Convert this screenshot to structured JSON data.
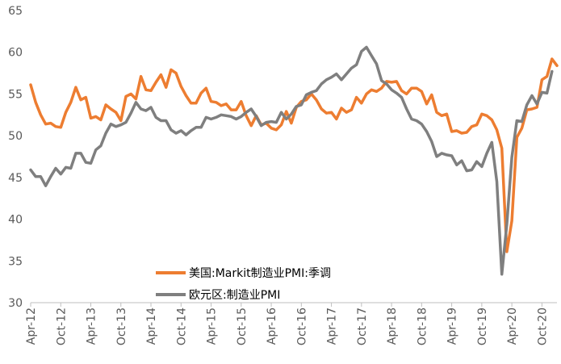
{
  "chart_data": {
    "type": "line",
    "title": "",
    "xlabel": "",
    "ylabel": "",
    "ylim": [
      30,
      65
    ],
    "yticks": [
      "30",
      "35",
      "40",
      "45",
      "50",
      "55",
      "60",
      "65"
    ],
    "x_tick_labels": [
      "Apr-12",
      "Oct-12",
      "Apr-13",
      "Oct-13",
      "Apr-14",
      "Oct-14",
      "Apr-15",
      "Oct-15",
      "Apr-16",
      "Oct-16",
      "Apr-17",
      "Oct-17",
      "Apr-18",
      "Oct-18",
      "Apr-19",
      "Oct-19",
      "Apr-20",
      "Oct-20"
    ],
    "x_start": "2012-04",
    "x_end": "2021-01",
    "grid": false,
    "legend_position": "bottom-center",
    "series": [
      {
        "name": "美国:Markit制造业PMI:季调",
        "color": "#ED7D31",
        "values": [
          56.1,
          54.0,
          52.5,
          51.4,
          51.5,
          51.1,
          51.0,
          52.8,
          54.0,
          55.8,
          54.3,
          54.6,
          52.1,
          52.3,
          51.9,
          53.7,
          53.2,
          52.8,
          51.8,
          54.7,
          55.0,
          54.4,
          57.1,
          55.5,
          55.4,
          56.4,
          57.3,
          55.8,
          57.9,
          57.5,
          55.9,
          54.8,
          53.9,
          53.9,
          55.1,
          55.7,
          54.1,
          54.0,
          53.6,
          53.8,
          53.1,
          53.1,
          54.1,
          52.4,
          51.2,
          52.4,
          51.3,
          51.5,
          50.9,
          50.7,
          51.3,
          52.9,
          51.5,
          53.4,
          54.1,
          54.3,
          55.0,
          54.3,
          53.2,
          52.7,
          52.8,
          52.0,
          53.3,
          52.8,
          53.1,
          54.6,
          53.9,
          55.0,
          55.5,
          55.3,
          55.7,
          56.5,
          56.4,
          56.5,
          55.4,
          55.0,
          55.7,
          55.7,
          55.3,
          53.8,
          54.9,
          52.8,
          52.4,
          52.6,
          50.5,
          50.6,
          50.3,
          50.4,
          51.1,
          51.3,
          52.6,
          52.4,
          51.9,
          50.7,
          48.5,
          36.1,
          39.8,
          49.8,
          50.9,
          53.1,
          53.2,
          53.4,
          56.7,
          57.1,
          59.2,
          58.4
        ],
        "last_month": "2021-01"
      },
      {
        "name": "欧元区:制造业PMI",
        "color": "#7F7F7F",
        "values": [
          45.9,
          45.1,
          45.1,
          44.0,
          45.1,
          46.1,
          45.4,
          46.2,
          46.1,
          47.9,
          47.9,
          46.8,
          46.7,
          48.3,
          48.8,
          50.3,
          51.4,
          51.1,
          51.3,
          51.6,
          52.7,
          54.0,
          53.2,
          53.0,
          53.4,
          52.2,
          51.8,
          51.8,
          50.7,
          50.3,
          50.6,
          50.1,
          50.6,
          51.0,
          51.0,
          52.2,
          52.0,
          52.2,
          52.5,
          52.4,
          52.3,
          52.0,
          52.3,
          52.8,
          53.2,
          52.3,
          51.2,
          51.6,
          51.7,
          51.6,
          52.8,
          52.0,
          52.6,
          53.5,
          53.7,
          54.9,
          55.2,
          55.4,
          56.2,
          56.7,
          57.0,
          57.4,
          56.7,
          57.4,
          58.1,
          58.5,
          60.1,
          60.6,
          59.6,
          58.6,
          56.6,
          56.2,
          55.5,
          55.1,
          54.6,
          53.2,
          52.0,
          51.8,
          51.4,
          50.5,
          49.3,
          47.5,
          47.9,
          47.7,
          47.6,
          46.5,
          47.0,
          45.8,
          45.9,
          46.9,
          46.3,
          47.9,
          49.2,
          44.5,
          33.4,
          39.4,
          47.4,
          51.8,
          51.7,
          53.7,
          54.8,
          53.8,
          55.2,
          55.1,
          57.7
        ],
        "last_month": "2020-12"
      }
    ]
  },
  "legend": {
    "series1_label": "美国:Markit制造业PMI:季调",
    "series2_label": "欧元区:制造业PMI"
  }
}
